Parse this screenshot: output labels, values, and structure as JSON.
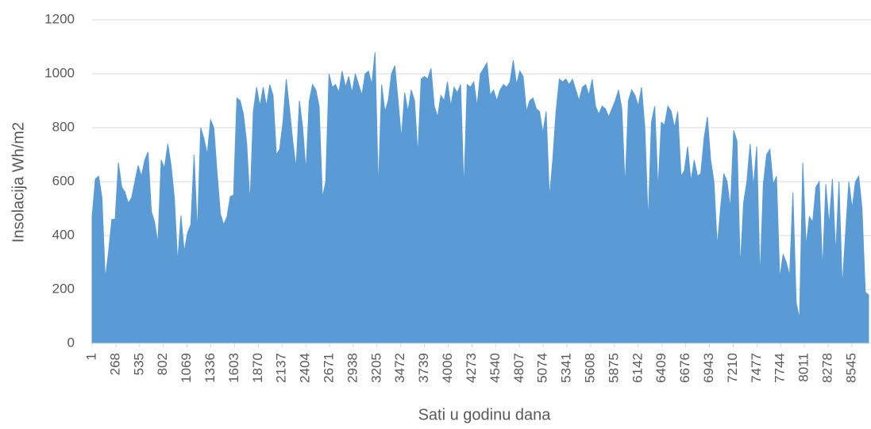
{
  "chart_data": {
    "type": "area",
    "y_label": "Insolacija Wh/m2",
    "x_label": "Sati u godinu dana",
    "color": "#5b9bd5",
    "grid": true,
    "xlim": [
      1,
      8760
    ],
    "ylim": [
      0,
      1200
    ],
    "yticks": [
      0,
      200,
      400,
      600,
      800,
      1000,
      1200
    ],
    "xticks": [
      1,
      268,
      535,
      802,
      1069,
      1336,
      1603,
      1870,
      2137,
      2404,
      2671,
      2938,
      3205,
      3472,
      3739,
      4006,
      4273,
      4540,
      4807,
      5074,
      5341,
      5608,
      5875,
      6142,
      6409,
      6676,
      6943,
      7210,
      7477,
      7744,
      8011,
      8278,
      8545
    ],
    "x": [
      1,
      38,
      75,
      112,
      149,
      186,
      223,
      260,
      297,
      334,
      371,
      408,
      445,
      482,
      519,
      556,
      593,
      630,
      667,
      704,
      741,
      778,
      815,
      852,
      889,
      926,
      963,
      1000,
      1037,
      1074,
      1111,
      1148,
      1185,
      1222,
      1259,
      1296,
      1333,
      1370,
      1407,
      1444,
      1481,
      1518,
      1555,
      1592,
      1629,
      1666,
      1703,
      1740,
      1777,
      1814,
      1851,
      1888,
      1925,
      1962,
      1999,
      2036,
      2073,
      2110,
      2147,
      2184,
      2221,
      2258,
      2295,
      2332,
      2369,
      2406,
      2443,
      2480,
      2517,
      2554,
      2591,
      2628,
      2665,
      2702,
      2739,
      2776,
      2813,
      2850,
      2887,
      2924,
      2961,
      2998,
      3035,
      3072,
      3109,
      3146,
      3183,
      3220,
      3257,
      3294,
      3331,
      3368,
      3405,
      3442,
      3479,
      3516,
      3553,
      3590,
      3627,
      3664,
      3701,
      3738,
      3775,
      3812,
      3849,
      3886,
      3923,
      3960,
      3997,
      4034,
      4071,
      4108,
      4145,
      4182,
      4219,
      4256,
      4293,
      4330,
      4367,
      4404,
      4441,
      4478,
      4515,
      4552,
      4589,
      4626,
      4663,
      4700,
      4737,
      4774,
      4811,
      4848,
      4885,
      4922,
      4959,
      4996,
      5033,
      5070,
      5107,
      5144,
      5181,
      5218,
      5255,
      5292,
      5329,
      5366,
      5403,
      5440,
      5477,
      5514,
      5551,
      5588,
      5625,
      5662,
      5699,
      5736,
      5773,
      5810,
      5847,
      5884,
      5921,
      5958,
      5995,
      6032,
      6069,
      6106,
      6143,
      6180,
      6217,
      6254,
      6291,
      6328,
      6365,
      6402,
      6439,
      6476,
      6513,
      6550,
      6587,
      6624,
      6661,
      6698,
      6735,
      6772,
      6809,
      6846,
      6883,
      6920,
      6957,
      6994,
      7031,
      7068,
      7105,
      7142,
      7179,
      7216,
      7253,
      7290,
      7327,
      7364,
      7401,
      7438,
      7475,
      7512,
      7549,
      7586,
      7623,
      7660,
      7697,
      7734,
      7771,
      7808,
      7845,
      7882,
      7919,
      7956,
      7993,
      8030,
      8067,
      8104,
      8141,
      8178,
      8215,
      8252,
      8289,
      8326,
      8363,
      8400,
      8437,
      8474,
      8511,
      8548,
      8585,
      8622,
      8659,
      8696,
      8733
    ],
    "values": [
      470,
      610,
      620,
      540,
      240,
      340,
      460,
      460,
      670,
      580,
      560,
      520,
      540,
      600,
      660,
      620,
      680,
      710,
      490,
      450,
      370,
      680,
      650,
      740,
      660,
      540,
      300,
      475,
      340,
      410,
      440,
      700,
      410,
      800,
      760,
      700,
      830,
      800,
      630,
      480,
      440,
      470,
      545,
      550,
      910,
      900,
      850,
      740,
      520,
      860,
      950,
      880,
      950,
      880,
      960,
      920,
      700,
      720,
      820,
      980,
      870,
      750,
      650,
      900,
      800,
      640,
      900,
      960,
      940,
      880,
      540,
      600,
      1000,
      950,
      960,
      930,
      1010,
      950,
      990,
      930,
      1000,
      960,
      920,
      1000,
      1010,
      960,
      1080,
      570,
      960,
      860,
      900,
      1000,
      1030,
      900,
      760,
      930,
      860,
      940,
      900,
      700,
      980,
      990,
      980,
      1020,
      880,
      840,
      920,
      900,
      970,
      880,
      950,
      930,
      960,
      570,
      960,
      950,
      970,
      880,
      1000,
      1020,
      1040,
      920,
      940,
      900,
      940,
      960,
      950,
      970,
      1050,
      960,
      1010,
      990,
      860,
      900,
      910,
      870,
      860,
      780,
      860,
      540,
      680,
      860,
      980,
      970,
      980,
      960,
      980,
      940,
      900,
      950,
      960,
      920,
      980,
      880,
      850,
      880,
      870,
      840,
      870,
      900,
      940,
      870,
      580,
      900,
      940,
      920,
      880,
      950,
      800,
      450,
      820,
      880,
      570,
      820,
      810,
      880,
      860,
      800,
      860,
      620,
      640,
      730,
      600,
      680,
      620,
      630,
      760,
      840,
      680,
      600,
      360,
      500,
      630,
      600,
      500,
      790,
      750,
      280,
      520,
      600,
      740,
      580,
      730,
      240,
      590,
      700,
      720,
      590,
      620,
      240,
      330,
      300,
      250,
      560,
      150,
      90,
      670,
      360,
      470,
      450,
      580,
      600,
      270,
      590,
      440,
      610,
      330,
      600,
      210,
      410,
      600,
      500,
      600,
      620,
      500,
      190,
      180
    ]
  }
}
